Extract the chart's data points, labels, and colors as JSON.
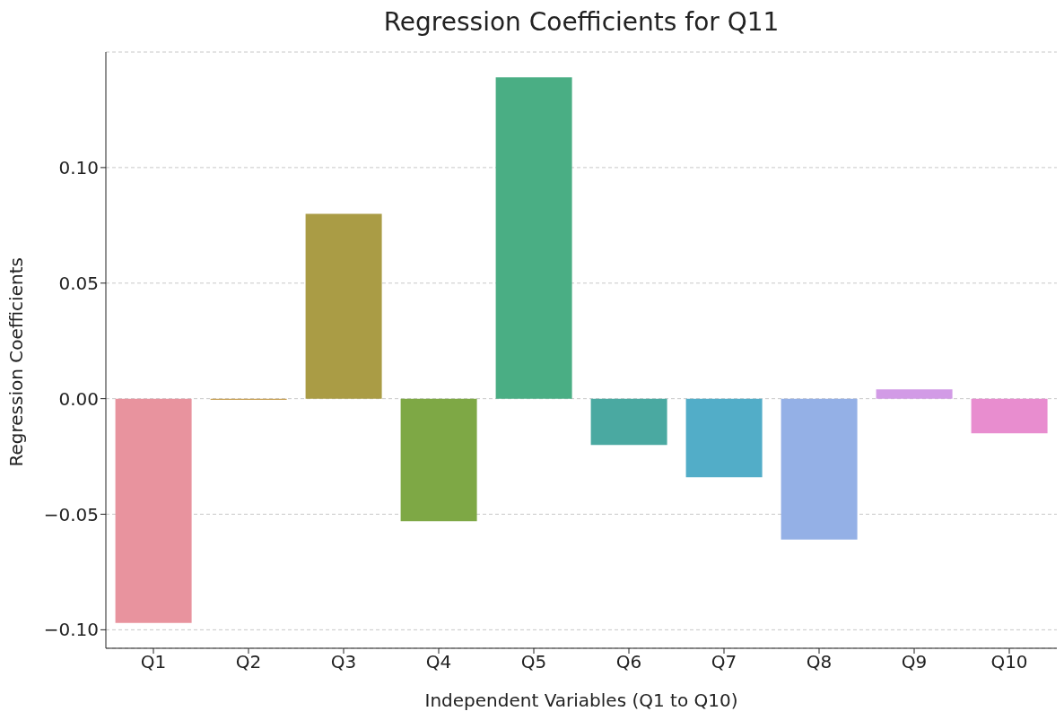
{
  "chart_data": {
    "type": "bar",
    "title": "Regression Coefficients for Q11",
    "xlabel": "Independent Variables (Q1 to Q10)",
    "ylabel": "Regression Coefficients",
    "categories": [
      "Q1",
      "Q2",
      "Q3",
      "Q4",
      "Q5",
      "Q6",
      "Q7",
      "Q8",
      "Q9",
      "Q10"
    ],
    "values": [
      -0.097,
      -0.0005,
      0.08,
      -0.053,
      0.139,
      -0.02,
      -0.034,
      -0.061,
      0.004,
      -0.015
    ],
    "colors": [
      "#e8939e",
      "#c9a35a",
      "#aa9c45",
      "#7ea845",
      "#4aae84",
      "#4aa9a1",
      "#52adc8",
      "#94b0e6",
      "#d29be6",
      "#e88dcf"
    ],
    "ylim": [
      -0.108,
      0.15
    ],
    "yticks": [
      {
        "value": -0.1,
        "label": "−0.10"
      },
      {
        "value": -0.05,
        "label": "−0.05"
      },
      {
        "value": 0,
        "label": "0.00"
      },
      {
        "value": 0.05,
        "label": "0.05"
      },
      {
        "value": 0.1,
        "label": "0.10"
      }
    ],
    "grid": "y"
  }
}
